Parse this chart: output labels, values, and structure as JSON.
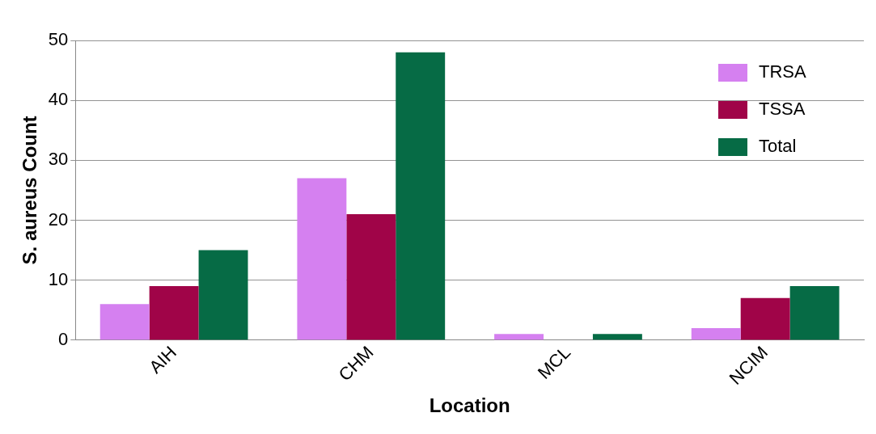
{
  "chart_data": {
    "type": "bar",
    "xlabel": "Location",
    "ylabel": "S. aureus Count",
    "categories": [
      "AIH",
      "CHM",
      "MCL",
      "NCIM"
    ],
    "series": [
      {
        "name": "TRSA",
        "color": "#d580f0",
        "values": [
          6,
          27,
          1,
          2
        ]
      },
      {
        "name": "TSSA",
        "color": "#a00448",
        "values": [
          9,
          21,
          0,
          7
        ]
      },
      {
        "name": "Total",
        "color": "#066b45",
        "values": [
          15,
          48,
          1,
          9
        ]
      }
    ],
    "ylim": [
      0,
      50
    ],
    "yticks": [
      0,
      10,
      20,
      30,
      40,
      50
    ],
    "grid": "y",
    "legend": "top right"
  }
}
